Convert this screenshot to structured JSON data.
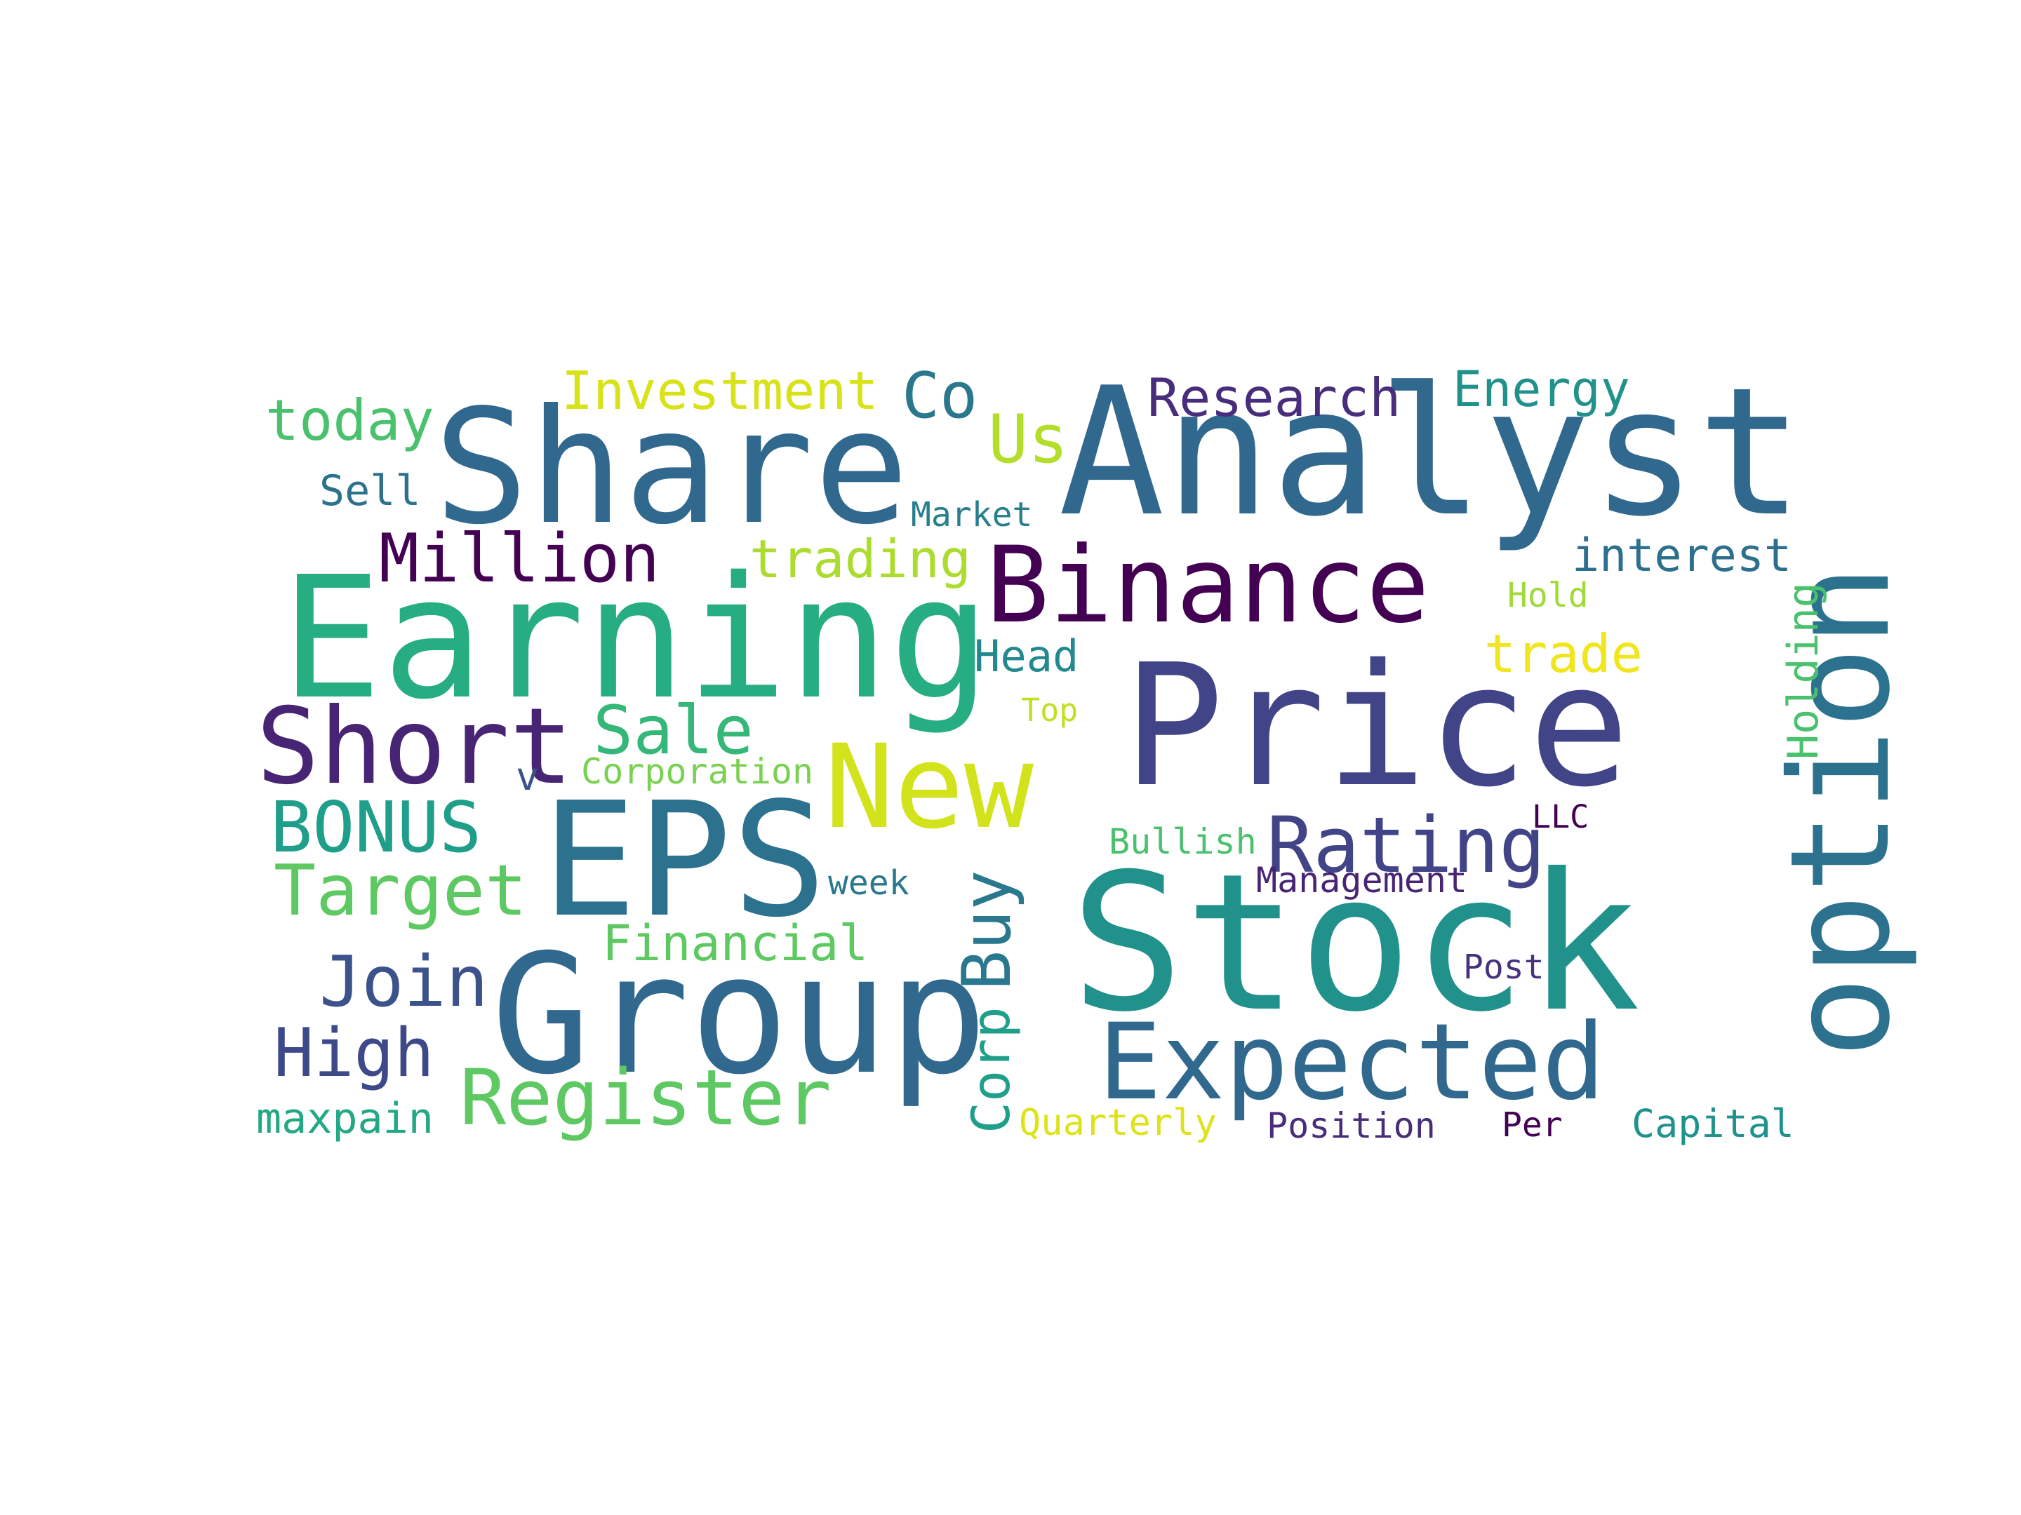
{
  "words": [
    {
      "text": "Analyst",
      "color": "#31688e",
      "orientation": "horizontal"
    },
    {
      "text": "Share",
      "color": "#31688e",
      "orientation": "horizontal"
    },
    {
      "text": "Earning",
      "color": "#26ad81",
      "orientation": "horizontal"
    },
    {
      "text": "Price",
      "color": "#414487",
      "orientation": "horizontal"
    },
    {
      "text": "Stock",
      "color": "#21918c",
      "orientation": "horizontal"
    },
    {
      "text": "Group",
      "color": "#31688e",
      "orientation": "horizontal"
    },
    {
      "text": "EPS",
      "color": "#2c728e",
      "orientation": "horizontal"
    },
    {
      "text": "New",
      "color": "#d2e21b",
      "orientation": "horizontal"
    },
    {
      "text": "option",
      "color": "#2c728e",
      "orientation": "vertical"
    },
    {
      "text": "Binance",
      "color": "#440154",
      "orientation": "horizontal"
    },
    {
      "text": "Expected",
      "color": "#31688e",
      "orientation": "horizontal"
    },
    {
      "text": "Short",
      "color": "#482475",
      "orientation": "horizontal"
    },
    {
      "text": "Million",
      "color": "#440154",
      "orientation": "horizontal"
    },
    {
      "text": "Register",
      "color": "#5ec962",
      "orientation": "horizontal"
    },
    {
      "text": "Target",
      "color": "#5ec962",
      "orientation": "horizontal"
    },
    {
      "text": "BONUS",
      "color": "#1f9e89",
      "orientation": "horizontal"
    },
    {
      "text": "Rating",
      "color": "#414487",
      "orientation": "horizontal"
    },
    {
      "text": "Research",
      "color": "#472d7b",
      "orientation": "horizontal"
    },
    {
      "text": "Join",
      "color": "#3b528b",
      "orientation": "horizontal"
    },
    {
      "text": "High",
      "color": "#3e4989",
      "orientation": "horizontal"
    },
    {
      "text": "Sale",
      "color": "#35b779",
      "orientation": "horizontal"
    },
    {
      "text": "Buy",
      "color": "#2a788e",
      "orientation": "vertical"
    },
    {
      "text": "Co",
      "color": "#2a788e",
      "orientation": "horizontal"
    },
    {
      "text": "Investment",
      "color": "#d8e219",
      "orientation": "horizontal"
    },
    {
      "text": "Us",
      "color": "#b5de2b",
      "orientation": "horizontal"
    },
    {
      "text": "today",
      "color": "#4ac16d",
      "orientation": "horizontal"
    },
    {
      "text": "Energy",
      "color": "#21918c",
      "orientation": "horizontal"
    },
    {
      "text": "trading",
      "color": "#addc30",
      "orientation": "horizontal"
    },
    {
      "text": "interest",
      "color": "#2d708e",
      "orientation": "horizontal"
    },
    {
      "text": "Financial",
      "color": "#5ec962",
      "orientation": "horizontal"
    },
    {
      "text": "trade",
      "color": "#f1e51d",
      "orientation": "horizontal"
    },
    {
      "text": "Holding",
      "color": "#4ac16d",
      "orientation": "vertical"
    },
    {
      "text": "Corp",
      "color": "#1f9e89",
      "orientation": "vertical"
    },
    {
      "text": "Head",
      "color": "#23898e",
      "orientation": "horizontal"
    },
    {
      "text": "maxpain",
      "color": "#22a884",
      "orientation": "horizontal"
    },
    {
      "text": "Sell",
      "color": "#2c728e",
      "orientation": "horizontal"
    },
    {
      "text": "Capital",
      "color": "#20928c",
      "orientation": "horizontal"
    },
    {
      "text": "Management",
      "color": "#482475",
      "orientation": "horizontal"
    },
    {
      "text": "Position",
      "color": "#472d7b",
      "orientation": "horizontal"
    },
    {
      "text": "Corporation",
      "color": "#7ad151",
      "orientation": "horizontal"
    },
    {
      "text": "Quarterly",
      "color": "#dde318",
      "orientation": "horizontal"
    },
    {
      "text": "Bullish",
      "color": "#4ac16d",
      "orientation": "horizontal"
    },
    {
      "text": "Market",
      "color": "#277f8e",
      "orientation": "horizontal"
    },
    {
      "text": "Post",
      "color": "#46327e",
      "orientation": "horizontal"
    },
    {
      "text": "Per",
      "color": "#440154",
      "orientation": "horizontal"
    },
    {
      "text": "week",
      "color": "#2a788e",
      "orientation": "horizontal"
    },
    {
      "text": "Hold",
      "color": "#a0da39",
      "orientation": "horizontal"
    },
    {
      "text": "Top",
      "color": "#c2df23",
      "orientation": "horizontal"
    },
    {
      "text": "LLC",
      "color": "#440154",
      "orientation": "horizontal"
    },
    {
      "text": "v",
      "color": "#3b528b",
      "orientation": "horizontal"
    }
  ]
}
